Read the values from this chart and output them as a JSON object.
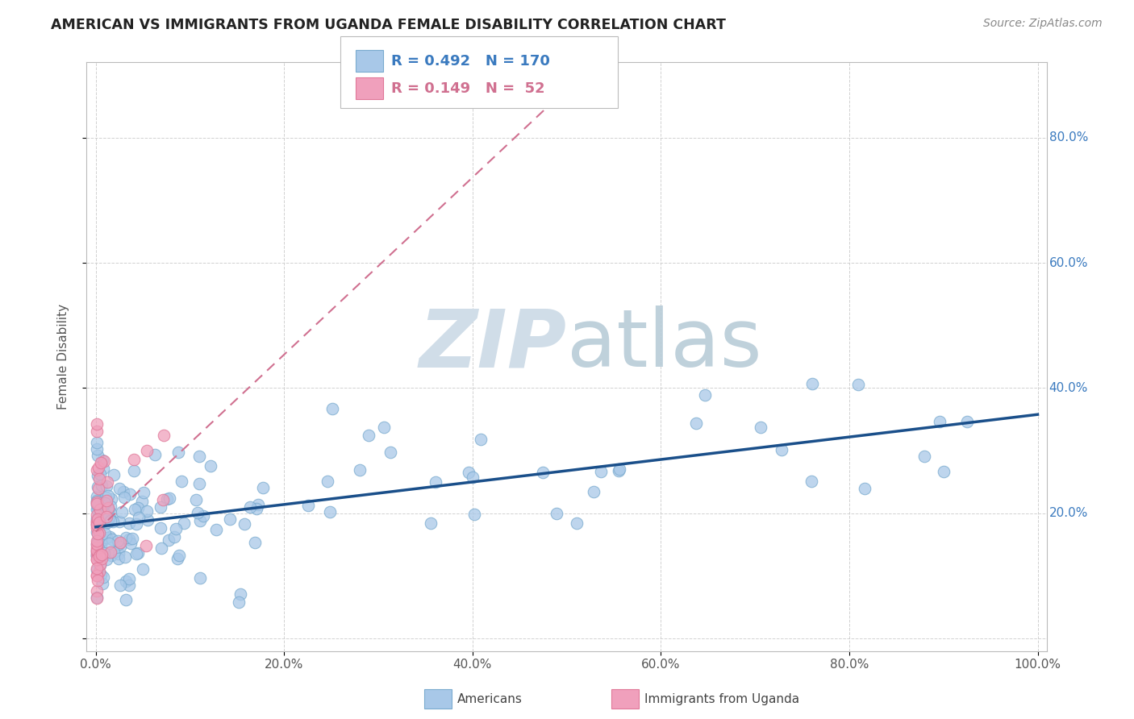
{
  "title": "AMERICAN VS IMMIGRANTS FROM UGANDA FEMALE DISABILITY CORRELATION CHART",
  "source": "Source: ZipAtlas.com",
  "ylabel": "Female Disability",
  "american_color": "#a8c8e8",
  "american_edge_color": "#7aabcf",
  "ugandan_color": "#f0a0bc",
  "ugandan_edge_color": "#e07898",
  "american_R": 0.492,
  "american_N": 170,
  "ugandan_R": 0.149,
  "ugandan_N": 52,
  "american_line_color": "#1a4f8a",
  "ugandan_line_color": "#d07090",
  "watermark_color": "#d0dde8",
  "legend_americans": "Americans",
  "legend_ugandans": "Immigrants from Uganda",
  "background_color": "#ffffff",
  "grid_color": "#cccccc",
  "yticklabel_american_color": "#3a7abf",
  "yticklabel_ugandan_color": "#d05080",
  "xticklabel_color": "#555555",
  "title_color": "#222222",
  "source_color": "#888888",
  "ylabel_color": "#555555"
}
